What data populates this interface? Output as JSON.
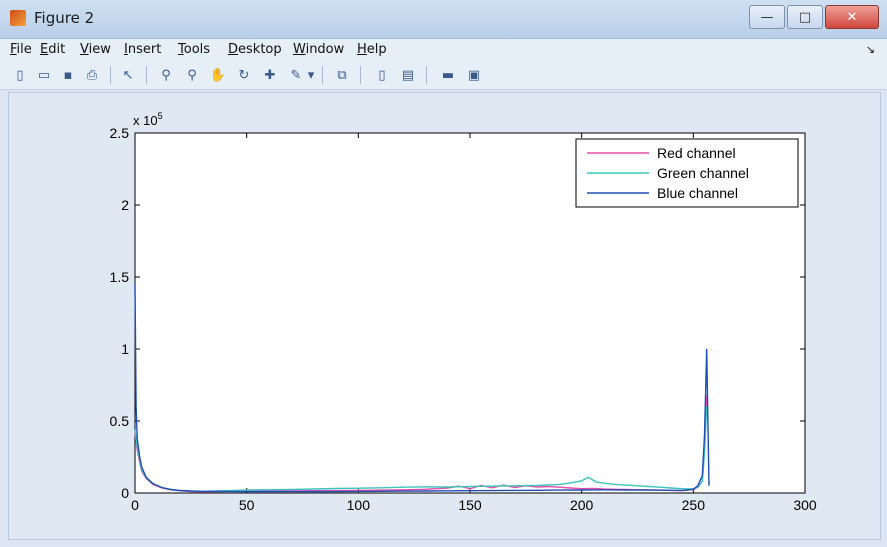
{
  "window": {
    "title": "Figure 2",
    "controls": {
      "minimize": "—",
      "maximize": "□",
      "close": "✕"
    }
  },
  "menu": {
    "items": [
      {
        "label_prefix": "",
        "accel": "F",
        "label_rest": "ile"
      },
      {
        "label_prefix": "",
        "accel": "E",
        "label_rest": "dit"
      },
      {
        "label_prefix": "",
        "accel": "V",
        "label_rest": "iew"
      },
      {
        "label_prefix": "",
        "accel": "I",
        "label_rest": "nsert"
      },
      {
        "label_prefix": "",
        "accel": "T",
        "label_rest": "ools"
      },
      {
        "label_prefix": "",
        "accel": "D",
        "label_rest": "esktop"
      },
      {
        "label_prefix": "",
        "accel": "W",
        "label_rest": "indow"
      },
      {
        "label_prefix": "",
        "accel": "H",
        "label_rest": "elp"
      }
    ],
    "overflow": "↘"
  },
  "toolbar": {
    "icons": [
      "new-figure-icon",
      "open-file-icon",
      "save-icon",
      "print-icon",
      "pointer-icon",
      "zoom-in-icon",
      "zoom-out-icon",
      "pan-icon",
      "rotate-3d-icon",
      "data-cursor-icon",
      "brush-icon",
      "dropdown-arrow-icon",
      "link-plot-icon",
      "colorbar-icon",
      "legend-icon",
      "hide-plot-tools-icon",
      "show-plot-tools-icon"
    ]
  },
  "chart_data": {
    "type": "line",
    "title": "",
    "xlabel": "",
    "ylabel": "",
    "xlim": [
      0,
      300
    ],
    "ylim": [
      0,
      250000
    ],
    "y_exponent_label": "x 10",
    "y_exponent_power": "5",
    "xticks": [
      "0",
      "50",
      "100",
      "150",
      "200",
      "250",
      "300"
    ],
    "yticks": [
      "0",
      "0.5",
      "1",
      "1.5",
      "2",
      "2.5"
    ],
    "grid": false,
    "legend_position": "top-right",
    "series": [
      {
        "name": "Red channel",
        "color": "#e84fa8",
        "x": [
          0,
          1,
          2,
          3,
          5,
          8,
          12,
          16,
          20,
          25,
          30,
          40,
          50,
          60,
          70,
          80,
          90,
          100,
          110,
          120,
          130,
          140,
          145,
          150,
          155,
          160,
          165,
          170,
          175,
          180,
          185,
          190,
          195,
          200,
          205,
          210,
          215,
          220,
          225,
          230,
          235,
          240,
          245,
          250,
          252,
          254,
          255,
          256
        ],
        "y": [
          42000,
          30000,
          22000,
          15000,
          10000,
          6000,
          3500,
          2200,
          1500,
          1000,
          900,
          1100,
          1300,
          1400,
          1500,
          1600,
          1700,
          1800,
          2000,
          2200,
          2600,
          3500,
          4800,
          3000,
          5200,
          3600,
          5500,
          3800,
          5000,
          4200,
          4500,
          4000,
          3500,
          3000,
          3200,
          2800,
          2600,
          2500,
          2300,
          2200,
          2000,
          1800,
          1600,
          2400,
          4000,
          8000,
          30000,
          68000
        ]
      },
      {
        "name": "Green channel",
        "color": "#3cc5bd",
        "x": [
          0,
          1,
          2,
          3,
          5,
          8,
          12,
          16,
          20,
          25,
          30,
          40,
          50,
          60,
          70,
          80,
          90,
          100,
          110,
          120,
          130,
          140,
          150,
          160,
          170,
          180,
          190,
          195,
          200,
          203,
          205,
          207,
          210,
          215,
          220,
          225,
          230,
          235,
          240,
          245,
          250,
          252,
          254,
          255,
          256
        ],
        "y": [
          44000,
          32000,
          24000,
          16000,
          10500,
          6500,
          3800,
          2400,
          1700,
          1300,
          1200,
          1600,
          2000,
          2200,
          2500,
          2800,
          3100,
          3300,
          3600,
          4000,
          4300,
          4200,
          4500,
          4800,
          5000,
          5200,
          6000,
          7000,
          8500,
          11000,
          9000,
          7500,
          6800,
          6000,
          5500,
          5000,
          4500,
          4000,
          3500,
          3000,
          2800,
          4000,
          8000,
          28000,
          60000
        ]
      },
      {
        "name": "Blue channel",
        "color": "#1f4fb5",
        "x": [
          0,
          0.5,
          1,
          2,
          3,
          5,
          8,
          12,
          16,
          20,
          25,
          30,
          40,
          50,
          60,
          70,
          80,
          90,
          100,
          110,
          120,
          130,
          140,
          150,
          160,
          170,
          180,
          190,
          200,
          210,
          220,
          230,
          240,
          245,
          250,
          252,
          254,
          255,
          256,
          257
        ],
        "y": [
          145000,
          60000,
          38000,
          26000,
          18000,
          11000,
          6500,
          3800,
          2500,
          1800,
          1400,
          1200,
          1100,
          1000,
          1000,
          1000,
          1000,
          1000,
          1100,
          1200,
          1300,
          1400,
          1500,
          1600,
          1700,
          1800,
          1900,
          2000,
          2100,
          2200,
          2100,
          2000,
          1900,
          1800,
          2600,
          5000,
          12000,
          40000,
          100000,
          5000
        ]
      }
    ]
  }
}
